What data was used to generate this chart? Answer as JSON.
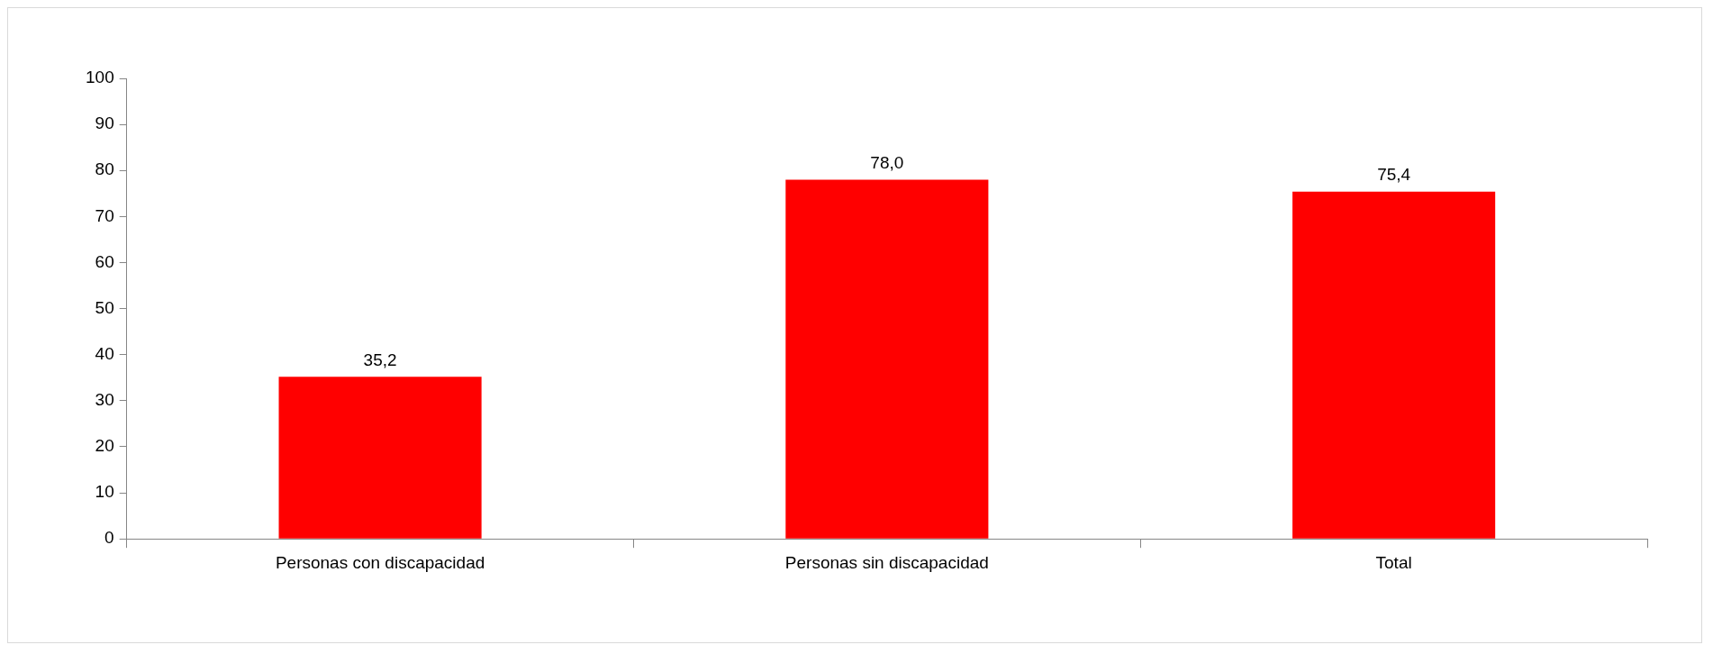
{
  "chart_data": {
    "type": "bar",
    "categories": [
      "Personas con discapacidad",
      "Personas sin discapacidad",
      "Total"
    ],
    "values": [
      35.2,
      78.0,
      75.4
    ],
    "color": "#ff0000",
    "value_labels": [
      "35,2",
      "78,0",
      "75,4"
    ],
    "ylim": [
      0,
      100
    ],
    "yticks": [
      0,
      10,
      20,
      30,
      40,
      50,
      60,
      70,
      80,
      90,
      100
    ]
  }
}
